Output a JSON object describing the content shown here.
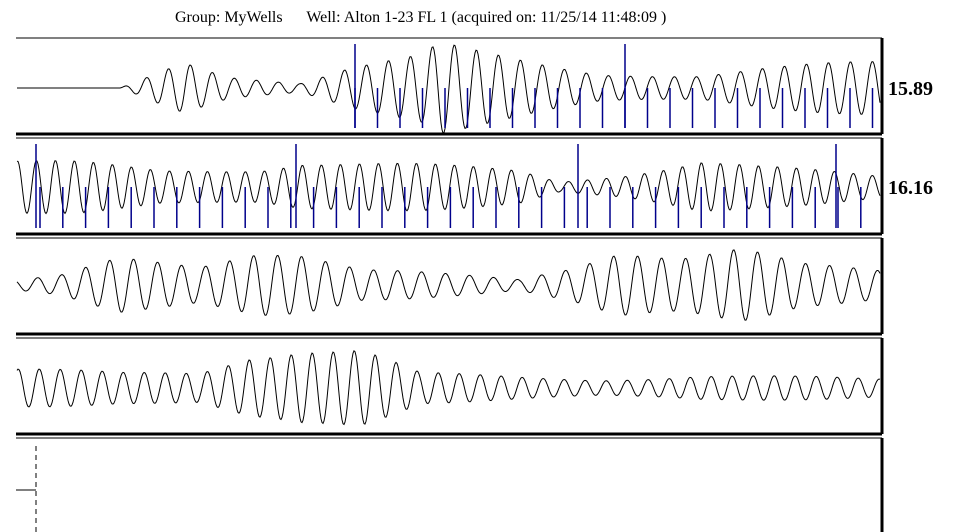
{
  "header": {
    "group_label": "Group: MyWells",
    "well_label": "Well: Alton 1-23 FL 1 (acquired on: 11/25/14 11:48:09 )"
  },
  "colors": {
    "waveform": "#000000",
    "marker": "#00008b",
    "frame": "#000000",
    "background": "#ffffff"
  },
  "chart_data": {
    "type": "line",
    "tracks": [
      {
        "value_label": "15.89",
        "has_markers": true
      },
      {
        "value_label": "16.16",
        "has_markers": true
      },
      {
        "value_label": "",
        "has_markers": false
      },
      {
        "value_label": "",
        "has_markers": false
      },
      {
        "value_label": "",
        "has_markers": false
      }
    ]
  }
}
